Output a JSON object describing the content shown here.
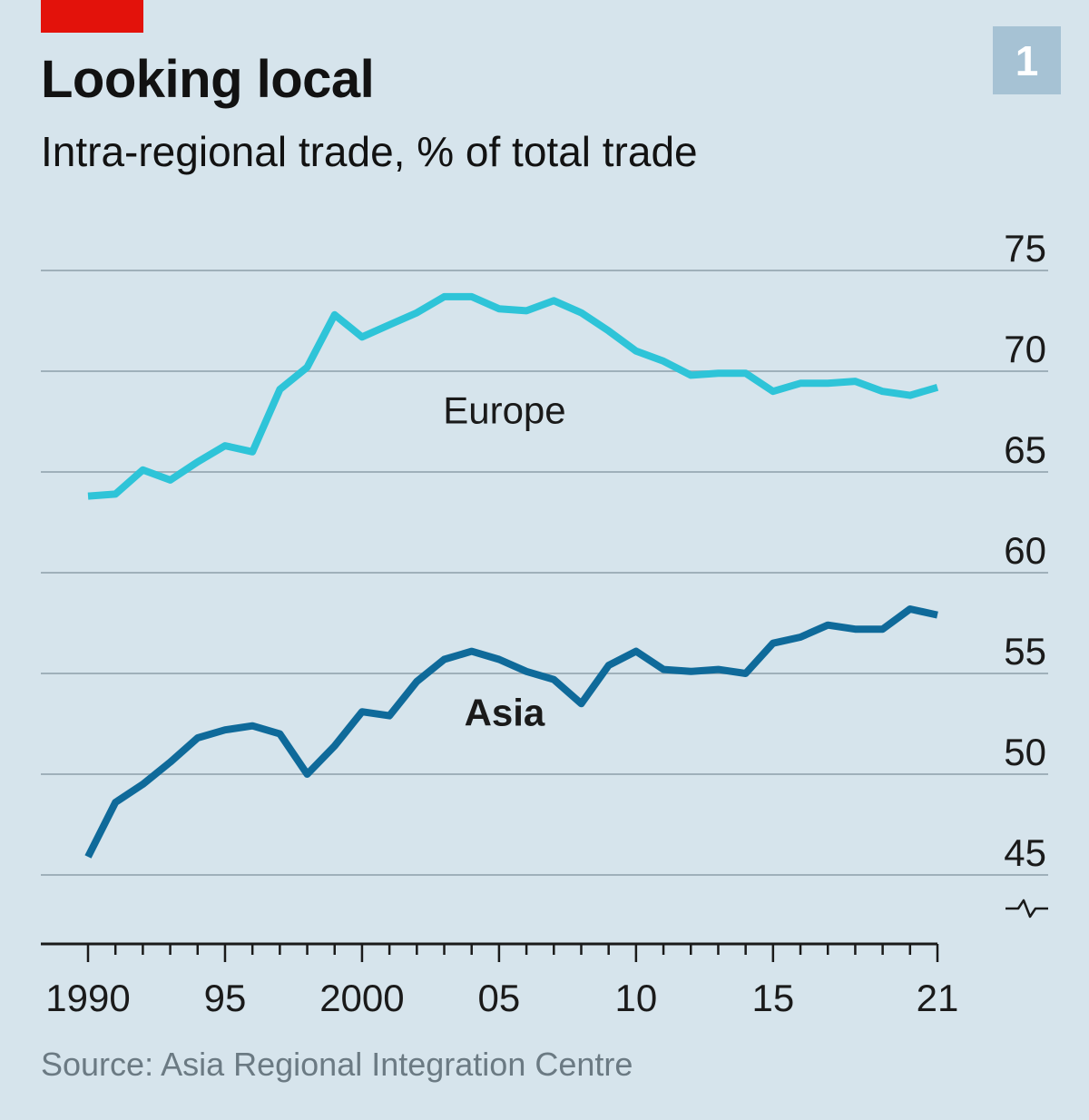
{
  "header": {
    "title": "Looking local",
    "subtitle": "Intra-regional trade, % of total trade",
    "badge": "1"
  },
  "footer": {
    "source": "Source: Asia Regional Integration Centre"
  },
  "colors": {
    "background": "#d6e4ec",
    "accent_red": "#e3120b",
    "europe": "#2ec4d8",
    "asia": "#0f6a9a",
    "gridline": "#9fb0ba",
    "badge": "#a6c2d4"
  },
  "chart_data": {
    "type": "line",
    "title": "Looking local",
    "subtitle": "Intra-regional trade, % of total trade",
    "x": [
      1990,
      1991,
      1992,
      1993,
      1994,
      1995,
      1996,
      1997,
      1998,
      1999,
      2000,
      2001,
      2002,
      2003,
      2004,
      2005,
      2006,
      2007,
      2008,
      2009,
      2010,
      2011,
      2012,
      2013,
      2014,
      2015,
      2016,
      2017,
      2018,
      2019,
      2020,
      2021
    ],
    "x_tick_values": [
      1990,
      1995,
      2000,
      2005,
      2010,
      2015,
      2021
    ],
    "x_tick_labels": [
      "1990",
      "95",
      "2000",
      "05",
      "10",
      "15",
      "21"
    ],
    "xlim": [
      1990,
      2021
    ],
    "y_tick_values": [
      45,
      50,
      55,
      60,
      65,
      70,
      75
    ],
    "y_tick_labels": [
      "45",
      "50",
      "55",
      "60",
      "65",
      "70",
      "75"
    ],
    "ylim": [
      43,
      75
    ],
    "y_axis_broken": true,
    "y_axis_side": "right",
    "grid": true,
    "series": [
      {
        "name": "Europe",
        "color_key": "europe",
        "label_bold": false,
        "values": [
          63.8,
          63.9,
          65.1,
          64.6,
          65.5,
          66.3,
          66.0,
          69.1,
          70.2,
          72.8,
          71.7,
          72.3,
          72.9,
          73.7,
          73.7,
          73.1,
          73.0,
          73.5,
          72.9,
          72.0,
          71.0,
          70.5,
          69.8,
          69.9,
          69.9,
          69.0,
          69.4,
          69.4,
          69.5,
          69.0,
          68.8,
          69.2
        ]
      },
      {
        "name": "Asia",
        "color_key": "asia",
        "label_bold": true,
        "values": [
          45.9,
          48.6,
          49.5,
          50.6,
          51.8,
          52.2,
          52.4,
          52.0,
          50.0,
          51.4,
          53.1,
          52.9,
          54.6,
          55.7,
          56.1,
          55.7,
          55.1,
          54.7,
          53.5,
          55.4,
          56.1,
          55.2,
          55.1,
          55.2,
          55.0,
          56.5,
          56.8,
          57.4,
          57.2,
          57.2,
          58.2,
          57.9
        ]
      }
    ]
  }
}
